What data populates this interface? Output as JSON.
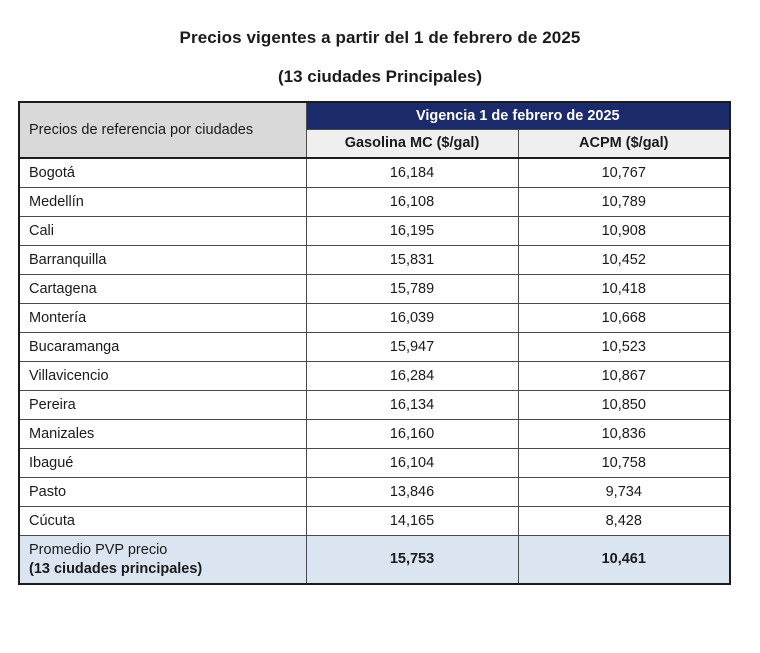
{
  "page": {
    "title": "Precios vigentes a partir del 1 de febrero de 2025",
    "subtitle": "(13 ciudades Principales)"
  },
  "table": {
    "corner_header": "Precios de referencia por ciudades",
    "group_header": "Vigencia 1 de febrero de 2025",
    "columns": [
      "Gasolina MC ($/gal)",
      "ACPM ($/gal)"
    ],
    "rows": [
      {
        "city": "Bogotá",
        "gasolina": "16,184",
        "acpm": "10,767"
      },
      {
        "city": "Medellín",
        "gasolina": "16,108",
        "acpm": "10,789"
      },
      {
        "city": "Cali",
        "gasolina": "16,195",
        "acpm": "10,908"
      },
      {
        "city": "Barranquilla",
        "gasolina": "15,831",
        "acpm": "10,452"
      },
      {
        "city": "Cartagena",
        "gasolina": "15,789",
        "acpm": "10,418"
      },
      {
        "city": "Montería",
        "gasolina": "16,039",
        "acpm": "10,668"
      },
      {
        "city": "Bucaramanga",
        "gasolina": "15,947",
        "acpm": "10,523"
      },
      {
        "city": "Villavicencio",
        "gasolina": "16,284",
        "acpm": "10,867"
      },
      {
        "city": "Pereira",
        "gasolina": "16,134",
        "acpm": "10,850"
      },
      {
        "city": "Manizales",
        "gasolina": "16,160",
        "acpm": "10,836"
      },
      {
        "city": "Ibagué",
        "gasolina": "16,104",
        "acpm": "10,758"
      },
      {
        "city": "Pasto",
        "gasolina": "13,846",
        "acpm": "9,734"
      },
      {
        "city": "Cúcuta",
        "gasolina": "14,165",
        "acpm": "8,428"
      }
    ],
    "footer": {
      "label_line1": "Promedio PVP precio",
      "label_line2": "(13 ciudades principales)",
      "gasolina": "15,753",
      "acpm": "10,461"
    }
  },
  "colors": {
    "group_header_bg": "#1b2a6b",
    "group_header_text": "#ffffff",
    "corner_header_bg": "#d9d9d9",
    "column_header_bg": "#efefef",
    "footer_row_bg": "#dbe5f1",
    "outer_border": "#1c1c1c",
    "inner_border": "#4a4a4a"
  }
}
